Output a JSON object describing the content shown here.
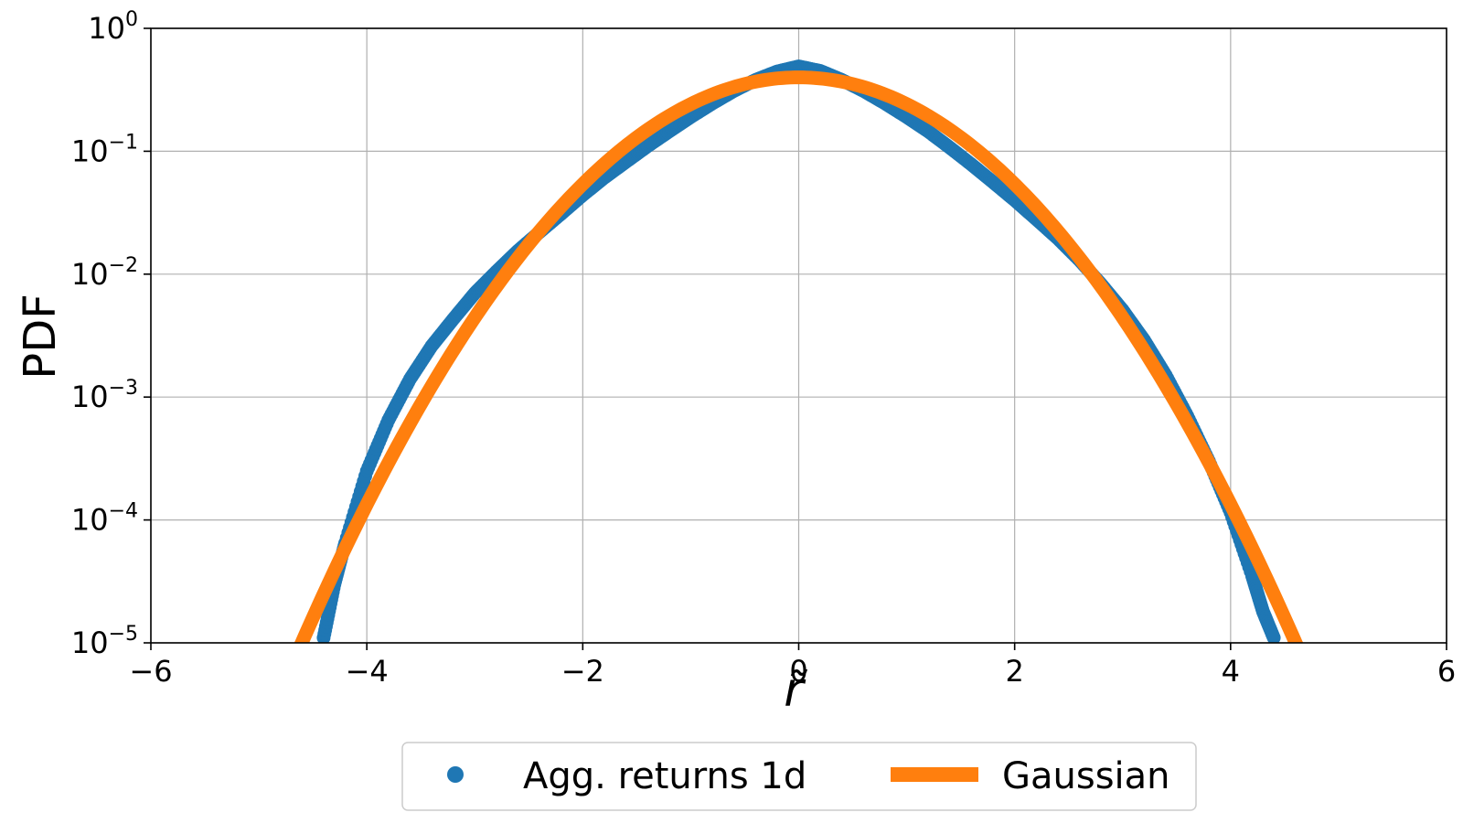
{
  "chart_data": {
    "type": "scatter",
    "xlabel": "r̃",
    "ylabel": "PDF",
    "xlim": [
      -6,
      6
    ],
    "ylim": [
      1e-05,
      1
    ],
    "yscale": "log",
    "grid": true,
    "legend_position": "bottom-center-outside",
    "x_ticks": [
      "-6",
      "-4",
      "-2",
      "0",
      "2",
      "4",
      "6"
    ],
    "y_ticks": [
      {
        "base": "10",
        "exp": "-5"
      },
      {
        "base": "10",
        "exp": "-4"
      },
      {
        "base": "10",
        "exp": "-3"
      },
      {
        "base": "10",
        "exp": "-2"
      },
      {
        "base": "10",
        "exp": "-1"
      },
      {
        "base": "10",
        "exp": "0"
      }
    ],
    "series": [
      {
        "name": "Agg. returns 1d",
        "kind": "scatter",
        "color": "#1f77b4",
        "points": [
          [
            -4.4,
            1.1e-05
          ],
          [
            -4.3,
            3e-05
          ],
          [
            -4.2,
            6.5e-05
          ],
          [
            -4.0,
            0.00025
          ],
          [
            -3.8,
            0.00065
          ],
          [
            -3.6,
            0.0014
          ],
          [
            -3.4,
            0.0026
          ],
          [
            -3.2,
            0.0043
          ],
          [
            -3.0,
            0.007
          ],
          [
            -2.8,
            0.0105
          ],
          [
            -2.6,
            0.0155
          ],
          [
            -2.4,
            0.022
          ],
          [
            -2.2,
            0.031
          ],
          [
            -2.0,
            0.044
          ],
          [
            -1.8,
            0.061
          ],
          [
            -1.6,
            0.082
          ],
          [
            -1.4,
            0.11
          ],
          [
            -1.2,
            0.145
          ],
          [
            -1.0,
            0.19
          ],
          [
            -0.8,
            0.245
          ],
          [
            -0.6,
            0.31
          ],
          [
            -0.4,
            0.38
          ],
          [
            -0.2,
            0.445
          ],
          [
            0.0,
            0.49
          ],
          [
            0.2,
            0.45
          ],
          [
            0.4,
            0.38
          ],
          [
            0.6,
            0.31
          ],
          [
            0.8,
            0.245
          ],
          [
            1.0,
            0.19
          ],
          [
            1.2,
            0.145
          ],
          [
            1.4,
            0.107
          ],
          [
            1.6,
            0.078
          ],
          [
            1.8,
            0.056
          ],
          [
            2.0,
            0.04
          ],
          [
            2.2,
            0.028
          ],
          [
            2.4,
            0.0195
          ],
          [
            2.6,
            0.013
          ],
          [
            2.8,
            0.0083
          ],
          [
            3.0,
            0.0051
          ],
          [
            3.2,
            0.0029
          ],
          [
            3.4,
            0.0015
          ],
          [
            3.6,
            0.0007
          ],
          [
            3.8,
            0.0003
          ],
          [
            4.0,
            0.000115
          ],
          [
            4.2,
            3.5e-05
          ],
          [
            4.3,
            1.8e-05
          ],
          [
            4.4,
            1.1e-05
          ]
        ]
      },
      {
        "name": "Gaussian",
        "kind": "line",
        "color": "#ff7f0e",
        "function": "standard-normal-pdf",
        "x_range": [
          -4.65,
          4.65
        ]
      }
    ]
  },
  "legend": {
    "items": [
      {
        "label": "Agg. returns 1d",
        "color": "#1f77b4",
        "marker": "dot"
      },
      {
        "label": "Gaussian",
        "color": "#ff7f0e",
        "marker": "line"
      }
    ]
  }
}
